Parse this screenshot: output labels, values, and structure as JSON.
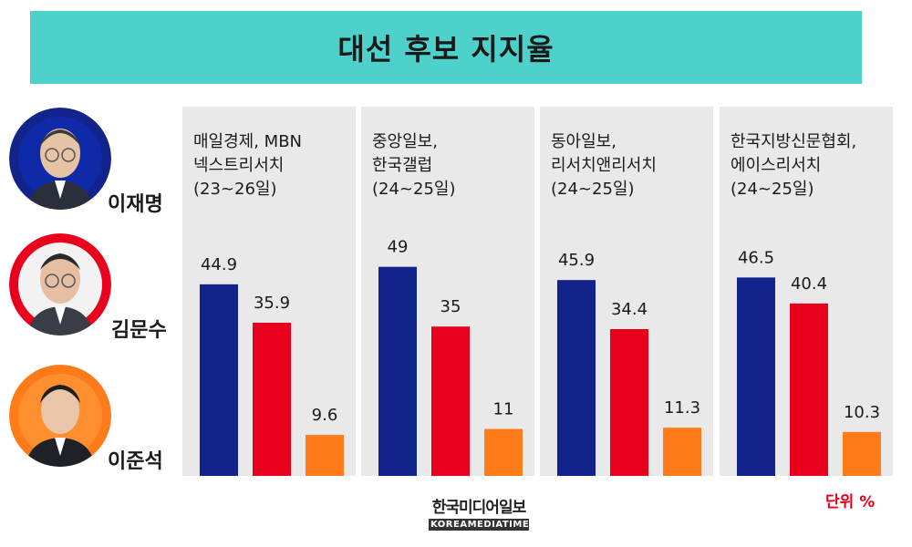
{
  "title": "대선 후보 지지율",
  "unit": "단위 %",
  "source_logo": {
    "korean": "한국미디어일보",
    "english": "KOREAMEDIATIMES"
  },
  "candidates": [
    {
      "name": "이재명",
      "color": "#13238c"
    },
    {
      "name": "김문수",
      "color": "#e8001c"
    },
    {
      "name": "이준석",
      "color": "#ff7b1a"
    }
  ],
  "polls": [
    {
      "label": "매일경제, MBN\n넥스트리서치\n(23~26일)"
    },
    {
      "label": "중앙일보,\n한국갤럽\n(24~25일)"
    },
    {
      "label": "동아일보,\n리서치앤리서치\n(24~25일)"
    },
    {
      "label": "한국지방신문협회,\n에이스리서치\n(24~25일)"
    }
  ],
  "chart_data": {
    "type": "bar",
    "title": "대선 후보 지지율",
    "unit": "%",
    "categories": [
      "매일경제, MBN 넥스트리서치 (23~26일)",
      "중앙일보, 한국갤럽 (24~25일)",
      "동아일보, 리서치앤리서치 (24~25일)",
      "한국지방신문협회, 에이스리서치 (24~25일)"
    ],
    "series": [
      {
        "name": "이재명",
        "color": "#13238c",
        "values": [
          44.9,
          49,
          45.9,
          46.5
        ],
        "labels": [
          "44.9",
          "49",
          "45.9",
          "46.5"
        ]
      },
      {
        "name": "김문수",
        "color": "#e8001c",
        "values": [
          35.9,
          35,
          34.4,
          40.4
        ],
        "labels": [
          "35.9",
          "35",
          "34.4",
          "40.4"
        ]
      },
      {
        "name": "이준석",
        "color": "#ff7b1a",
        "values": [
          9.6,
          11,
          11.3,
          10.3
        ],
        "labels": [
          "9.6",
          "11",
          "11.3",
          "10.3"
        ]
      }
    ]
  }
}
